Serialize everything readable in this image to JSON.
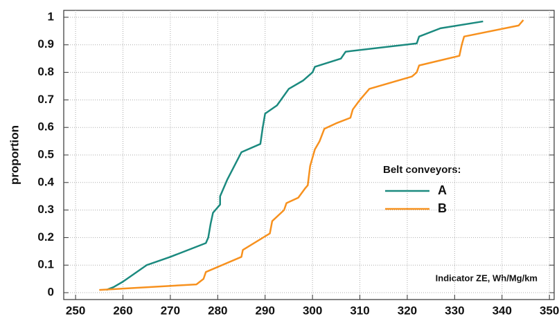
{
  "chart_data": {
    "type": "line",
    "y_label": "proportion",
    "annotation": "Indicator ZE,  Wh/Mg/km",
    "legend_title": "Belt conveyors:",
    "legend_position": "center-right",
    "grid": true,
    "xlim": [
      247.5,
      351
    ],
    "ylim": [
      -0.025,
      1.025
    ],
    "xticks": [
      250,
      260,
      270,
      280,
      290,
      300,
      310,
      320,
      330,
      340,
      350
    ],
    "yticks": [
      0,
      0.1,
      0.2,
      0.3,
      0.4,
      0.5,
      0.6,
      0.7,
      0.8,
      0.9,
      1
    ],
    "series": [
      {
        "name": "A",
        "color": "#1b8a7f",
        "x": [
          256.5,
          258,
          260,
          265,
          270,
          277.5,
          278,
          278.5,
          279,
          280,
          280.5,
          280.5,
          282,
          285,
          289,
          289.5,
          290,
          292.5,
          295,
          298,
          300,
          300.5,
          306,
          307,
          322,
          322.5,
          327,
          336
        ],
        "values": [
          0.01,
          0.02,
          0.04,
          0.1,
          0.13,
          0.18,
          0.2,
          0.25,
          0.29,
          0.31,
          0.32,
          0.35,
          0.41,
          0.51,
          0.54,
          0.6,
          0.65,
          0.68,
          0.74,
          0.77,
          0.8,
          0.82,
          0.85,
          0.875,
          0.905,
          0.93,
          0.96,
          0.985
        ]
      },
      {
        "name": "B",
        "color": "#f7911e",
        "x": [
          255,
          275.5,
          277,
          277.5,
          285,
          285.3,
          291,
          291.5,
          294,
          294.5,
          297,
          298.5,
          299,
          299.5,
          300.5,
          301.5,
          302.5,
          305,
          308,
          308.5,
          310,
          312,
          321,
          322,
          322.5,
          331,
          331.5,
          332,
          343.5,
          344.5
        ],
        "values": [
          0.01,
          0.03,
          0.05,
          0.075,
          0.13,
          0.155,
          0.215,
          0.26,
          0.3,
          0.325,
          0.345,
          0.38,
          0.39,
          0.46,
          0.52,
          0.55,
          0.595,
          0.615,
          0.635,
          0.665,
          0.7,
          0.74,
          0.785,
          0.8,
          0.825,
          0.86,
          0.9,
          0.93,
          0.97,
          0.99
        ]
      }
    ]
  }
}
